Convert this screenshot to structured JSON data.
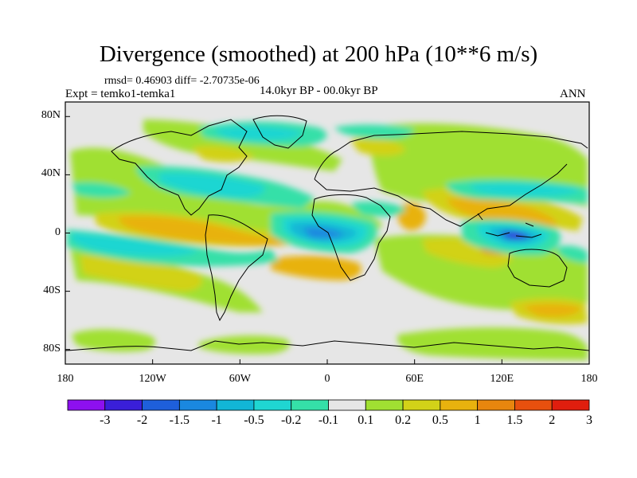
{
  "figure": {
    "title": "Divergence (smoothed) at 200 hPa (10**6 m/s)",
    "stats": "rmsd= 0.46903 diff= -2.70735e-06",
    "experiment": "Expt = temko1-temka1",
    "period": "14.0kyr BP - 00.0kyr BP",
    "season": "ANN"
  },
  "map": {
    "projection": "cylindrical-equidistant",
    "lat_labels": [
      "80N",
      "40N",
      "0",
      "40S",
      "80S"
    ],
    "lon_labels": [
      "180",
      "120W",
      "60W",
      "0",
      "60E",
      "120E",
      "180"
    ],
    "lat_values": [
      80,
      40,
      0,
      -40,
      -80
    ],
    "lon_values": [
      -180,
      -120,
      -60,
      0,
      60,
      120,
      180
    ],
    "lat_range": [
      -90,
      90
    ],
    "lon_range": [
      -180,
      180
    ],
    "background_color": "#e6e6e6",
    "coast_color": "#000000"
  },
  "colorbar": {
    "labels": [
      "-3",
      "-2",
      "-1.5",
      "-1",
      "-0.5",
      "-0.2",
      "-0.1",
      "0.1",
      "0.2",
      "0.5",
      "1",
      "1.5",
      "2",
      "3"
    ],
    "colors": [
      "#8d10ef",
      "#3a1fd9",
      "#1e5fdb",
      "#1a88e0",
      "#12b6d6",
      "#1fd6d2",
      "#35e0a8",
      "#e6e6e6",
      "#a0e032",
      "#d2d218",
      "#e8b20e",
      "#e8860e",
      "#e8500e",
      "#e01e0e"
    ]
  }
}
